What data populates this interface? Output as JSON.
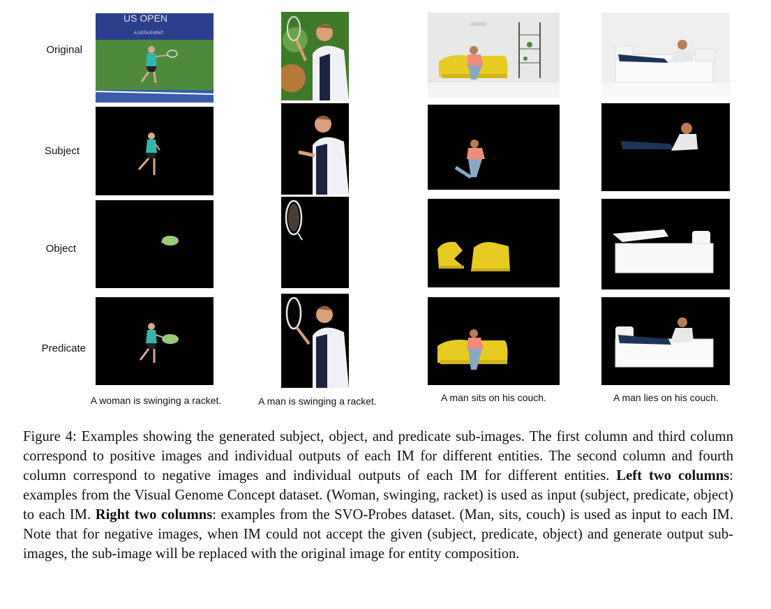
{
  "row_labels": {
    "original": "Original",
    "subject": "Subject",
    "object": "Object",
    "predicate": "Predicate"
  },
  "image_labels": {
    "scoreboard_text": "US OPEN",
    "scoreboard_subtext": "A USTA EVENT"
  },
  "column_captions": [
    "A woman is swinging a racket.",
    "A man is swinging a racket.",
    "A man sits on his couch.",
    "A man lies on his couch."
  ],
  "figure_caption": {
    "p1": "Figure 4: Examples showing the generated subject, object, and predicate sub-images. The first column and third column correspond to positive images and individual outputs of each IM for different entities. The second column and fourth column correspond to negative images and individual outputs of each IM for different entities. ",
    "b1": "Left two columns",
    "p2": ": examples from the Visual Genome Concept dataset. (Woman, swinging, racket) is used as input (subject, predicate, object) to each IM. ",
    "b2": "Right two columns",
    "p3": ": examples from the SVO-Probes dataset. (Man, sits, couch) is used as input to each IM. Note that for negative images, when IM could not accept the given (subject, predicate, object) and generate output sub-images, the sub-image will be replaced with the original image for entity composition."
  }
}
